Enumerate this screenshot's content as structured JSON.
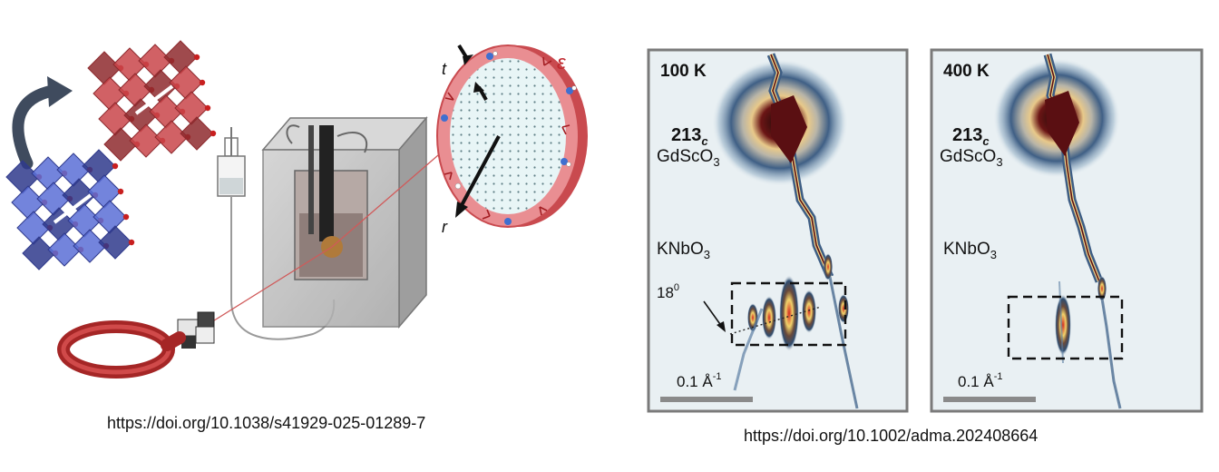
{
  "left_figure": {
    "labels": {
      "thickness": "t",
      "radius": "r",
      "strain": "ε"
    },
    "doi": "https://doi.org/10.1038/s41929-025-01289-7"
  },
  "right_figure": {
    "panels": [
      {
        "temperature": "100 K",
        "peak_label": "213",
        "peak_subscript": "c",
        "substrate_main": "GdScO",
        "substrate_sub": "3",
        "film_main": "KNbO",
        "film_sub": "3",
        "angle_label": "18",
        "angle_sup": "0",
        "scale_label": "0.1 Å",
        "scale_sup": "-1"
      },
      {
        "temperature": "400 K",
        "peak_label": "213",
        "peak_subscript": "c",
        "substrate_main": "GdScO",
        "substrate_sub": "3",
        "film_main": "KNbO",
        "film_sub": "3",
        "scale_label": "0.1 Å",
        "scale_sup": "-1"
      }
    ],
    "doi": "https://doi.org/10.1002/adma.202408664"
  },
  "colors": {
    "perovskite_red": "#c9454a",
    "perovskite_blue": "#5b6fd6",
    "laser_red": "#b02a2a",
    "map_background": "#e9f0f3",
    "map_halo": "#3b5f86",
    "map_core": "#5a0f12",
    "frame_gray": "#7a7a7a"
  }
}
